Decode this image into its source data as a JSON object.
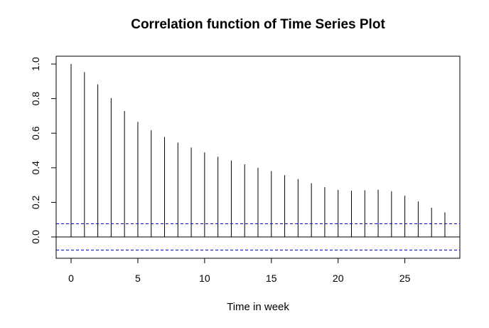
{
  "chart_data": {
    "type": "bar",
    "title": "Correlation function of Time Series Plot",
    "xlabel": "Time in week",
    "ylabel": "",
    "x": [
      0,
      1,
      2,
      3,
      4,
      5,
      6,
      7,
      8,
      9,
      10,
      11,
      12,
      13,
      14,
      15,
      16,
      17,
      18,
      19,
      20,
      21,
      22,
      23,
      24,
      25,
      26,
      27,
      28
    ],
    "values": [
      1.0,
      0.953,
      0.882,
      0.803,
      0.728,
      0.665,
      0.617,
      0.578,
      0.546,
      0.517,
      0.489,
      0.464,
      0.442,
      0.42,
      0.4,
      0.381,
      0.357,
      0.335,
      0.311,
      0.288,
      0.272,
      0.267,
      0.27,
      0.273,
      0.264,
      0.238,
      0.205,
      0.169,
      0.142
    ],
    "confidence_bounds": [
      0.076,
      -0.076
    ],
    "xlim": [
      -1.12,
      29.12
    ],
    "ylim": [
      -0.118,
      1.0
    ],
    "xticks": [
      0,
      5,
      10,
      15,
      20,
      25
    ],
    "yticks": [
      0.0,
      0.2,
      0.4,
      0.6,
      0.8,
      1.0
    ],
    "xtick_labels": [
      "0",
      "5",
      "10",
      "15",
      "20",
      "25"
    ],
    "ytick_labels": [
      "0.0",
      "0.2",
      "0.4",
      "0.6",
      "0.8",
      "1.0"
    ],
    "colors": {
      "bars": "#000000",
      "bounds": "#0000cc",
      "zero_line": "#000000"
    },
    "grid": false
  }
}
